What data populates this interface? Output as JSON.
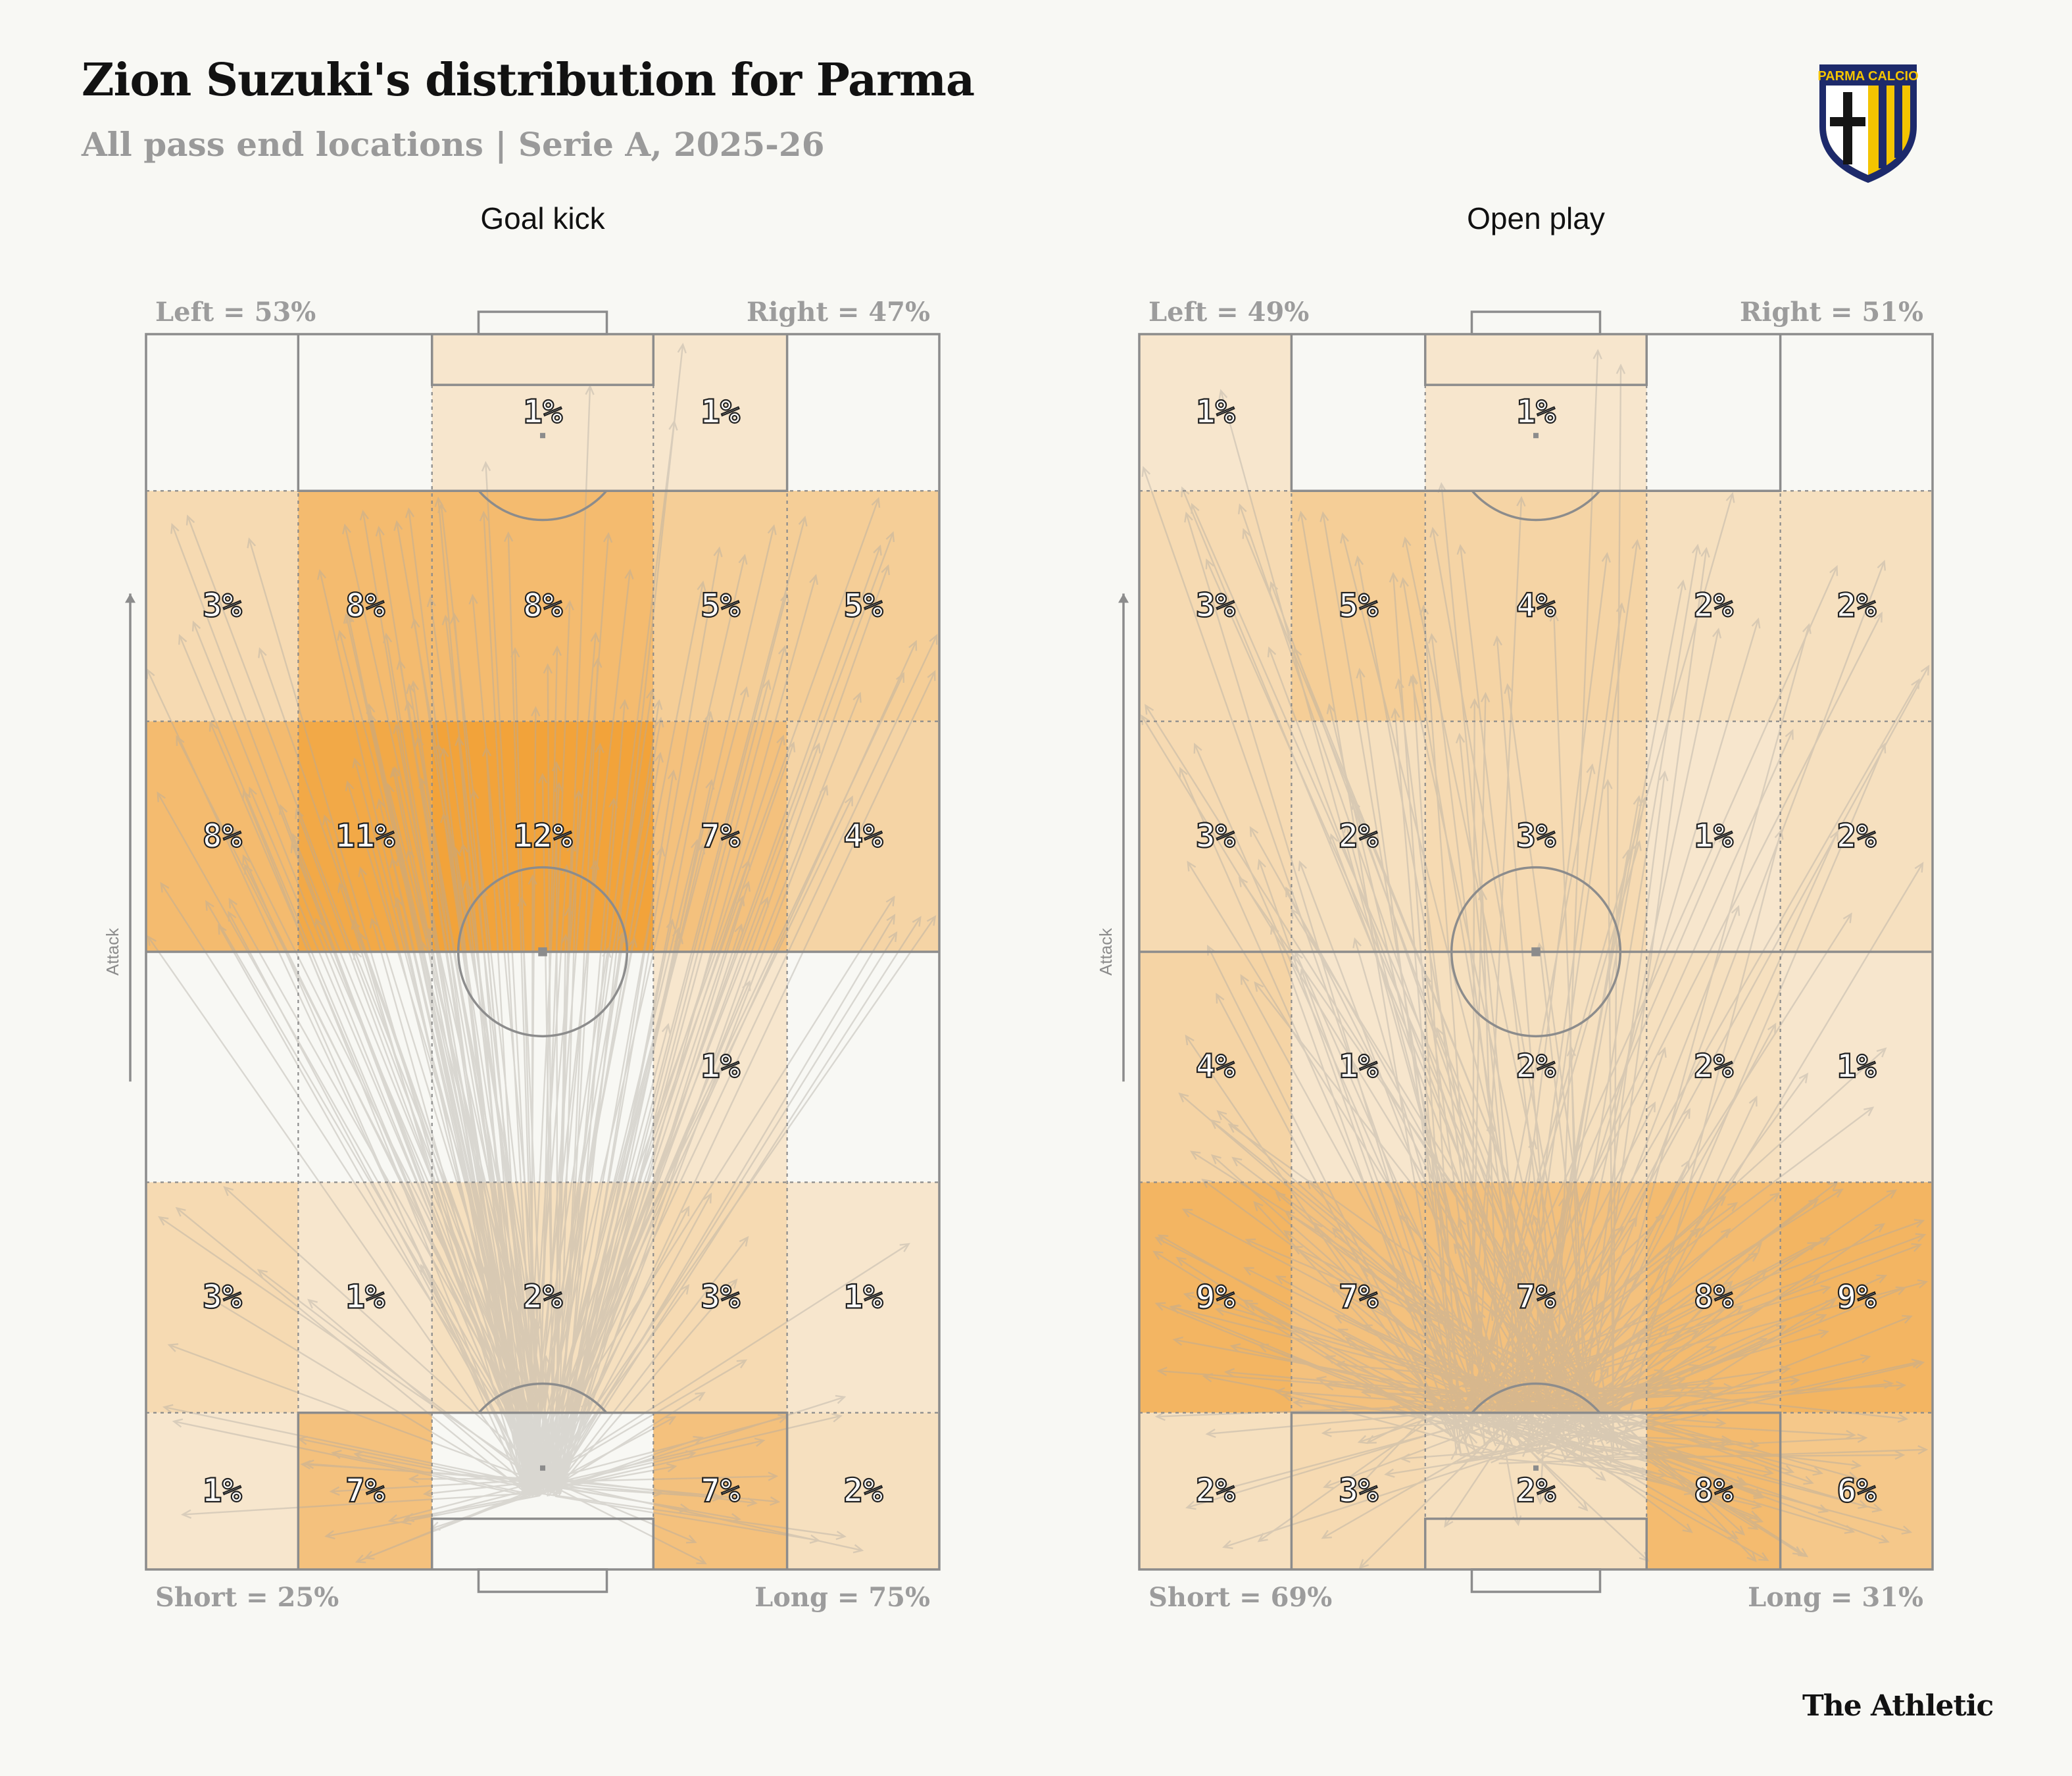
{
  "header": {
    "title": "Zion Suzuki's distribution for Parma",
    "subtitle": "All pass end locations | Serie A, 2025-26"
  },
  "crest": {
    "text": "PARMA CALCIO",
    "colors": {
      "navy": "#1d2a6b",
      "yellow": "#f4c400",
      "black": "#151515"
    }
  },
  "footer": {
    "brand": "The Athletic"
  },
  "colors": {
    "heat_max": "#f2a33a",
    "background": "#f8f8f4",
    "pitch_line": "#8c8c8c",
    "arrow": "#b0aba3"
  },
  "chart_data": [
    {
      "type": "heatmap",
      "title": "Goal kick",
      "attack_label": "Attack",
      "corners": {
        "left": "Left = 53%",
        "right": "Right = 47%",
        "short": "Short = 25%",
        "long": "Long = 75%"
      },
      "column_widths_m": [
        16.5,
        14.5,
        24,
        14.5,
        16.5
      ],
      "row_heights_m": [
        17,
        25,
        25,
        25,
        25,
        17
      ],
      "values": [
        [
          null,
          null,
          1,
          1,
          null
        ],
        [
          3,
          8,
          8,
          5,
          5
        ],
        [
          8,
          11,
          12,
          7,
          4
        ],
        [
          null,
          null,
          null,
          1,
          null
        ],
        [
          3,
          1,
          2,
          3,
          1
        ],
        [
          1,
          7,
          null,
          7,
          2
        ]
      ],
      "vmax": 12,
      "arrow_origin": [
        2,
        5.6
      ]
    },
    {
      "type": "heatmap",
      "title": "Open play",
      "attack_label": "Attack",
      "corners": {
        "left": "Left = 49%",
        "right": "Right = 51%",
        "short": "Short = 69%",
        "long": "Long = 31%"
      },
      "column_widths_m": [
        16.5,
        14.5,
        24,
        14.5,
        16.5
      ],
      "row_heights_m": [
        17,
        25,
        25,
        25,
        25,
        17
      ],
      "values": [
        [
          1,
          null,
          1,
          null,
          null
        ],
        [
          3,
          5,
          4,
          2,
          2
        ],
        [
          3,
          2,
          3,
          1,
          2
        ],
        [
          4,
          1,
          2,
          2,
          1
        ],
        [
          9,
          7,
          7,
          8,
          9
        ],
        [
          2,
          3,
          2,
          8,
          6
        ]
      ],
      "vmax": 12,
      "arrow_origin": [
        2,
        5.3
      ]
    }
  ]
}
